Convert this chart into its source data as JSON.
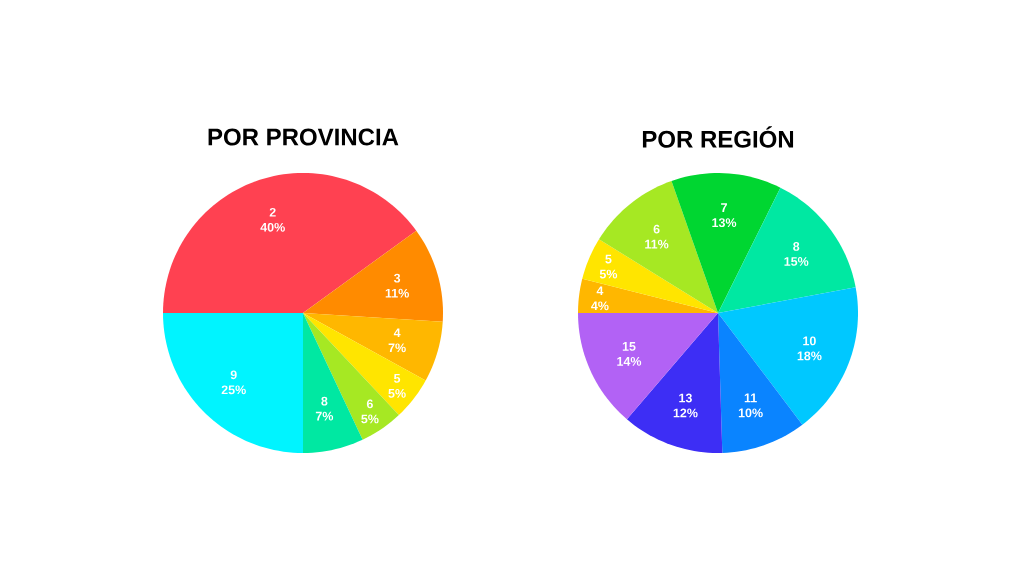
{
  "chart_data": [
    {
      "type": "pie",
      "title": "POR PROVINCIA",
      "categories": [
        "2",
        "3",
        "4",
        "5",
        "6",
        "8",
        "9"
      ],
      "values": [
        40,
        11,
        7,
        5,
        5,
        7,
        25
      ],
      "value_labels": [
        "40%",
        "11%",
        "7%",
        "5%",
        "5%",
        "7%",
        "25%"
      ],
      "colors": [
        "#ff4151",
        "#ff8b00",
        "#ffb700",
        "#ffe500",
        "#a6e823",
        "#00e8a2",
        "#00f4ff"
      ]
    },
    {
      "type": "pie",
      "title": "POR REGIÓN",
      "categories": [
        "4",
        "5",
        "6",
        "7",
        "8",
        "10",
        "11",
        "13",
        "15"
      ],
      "values": [
        4,
        5,
        11,
        13,
        15,
        18,
        10,
        12,
        14
      ],
      "value_labels": [
        "4%",
        "5%",
        "11%",
        "13%",
        "15%",
        "18%",
        "10%",
        "12%",
        "14%"
      ],
      "colors": [
        "#ffb700",
        "#ffe500",
        "#a6e823",
        "#00d631",
        "#00e8a2",
        "#00c8ff",
        "#0a84ff",
        "#3d2ef5",
        "#b262f5"
      ]
    }
  ]
}
